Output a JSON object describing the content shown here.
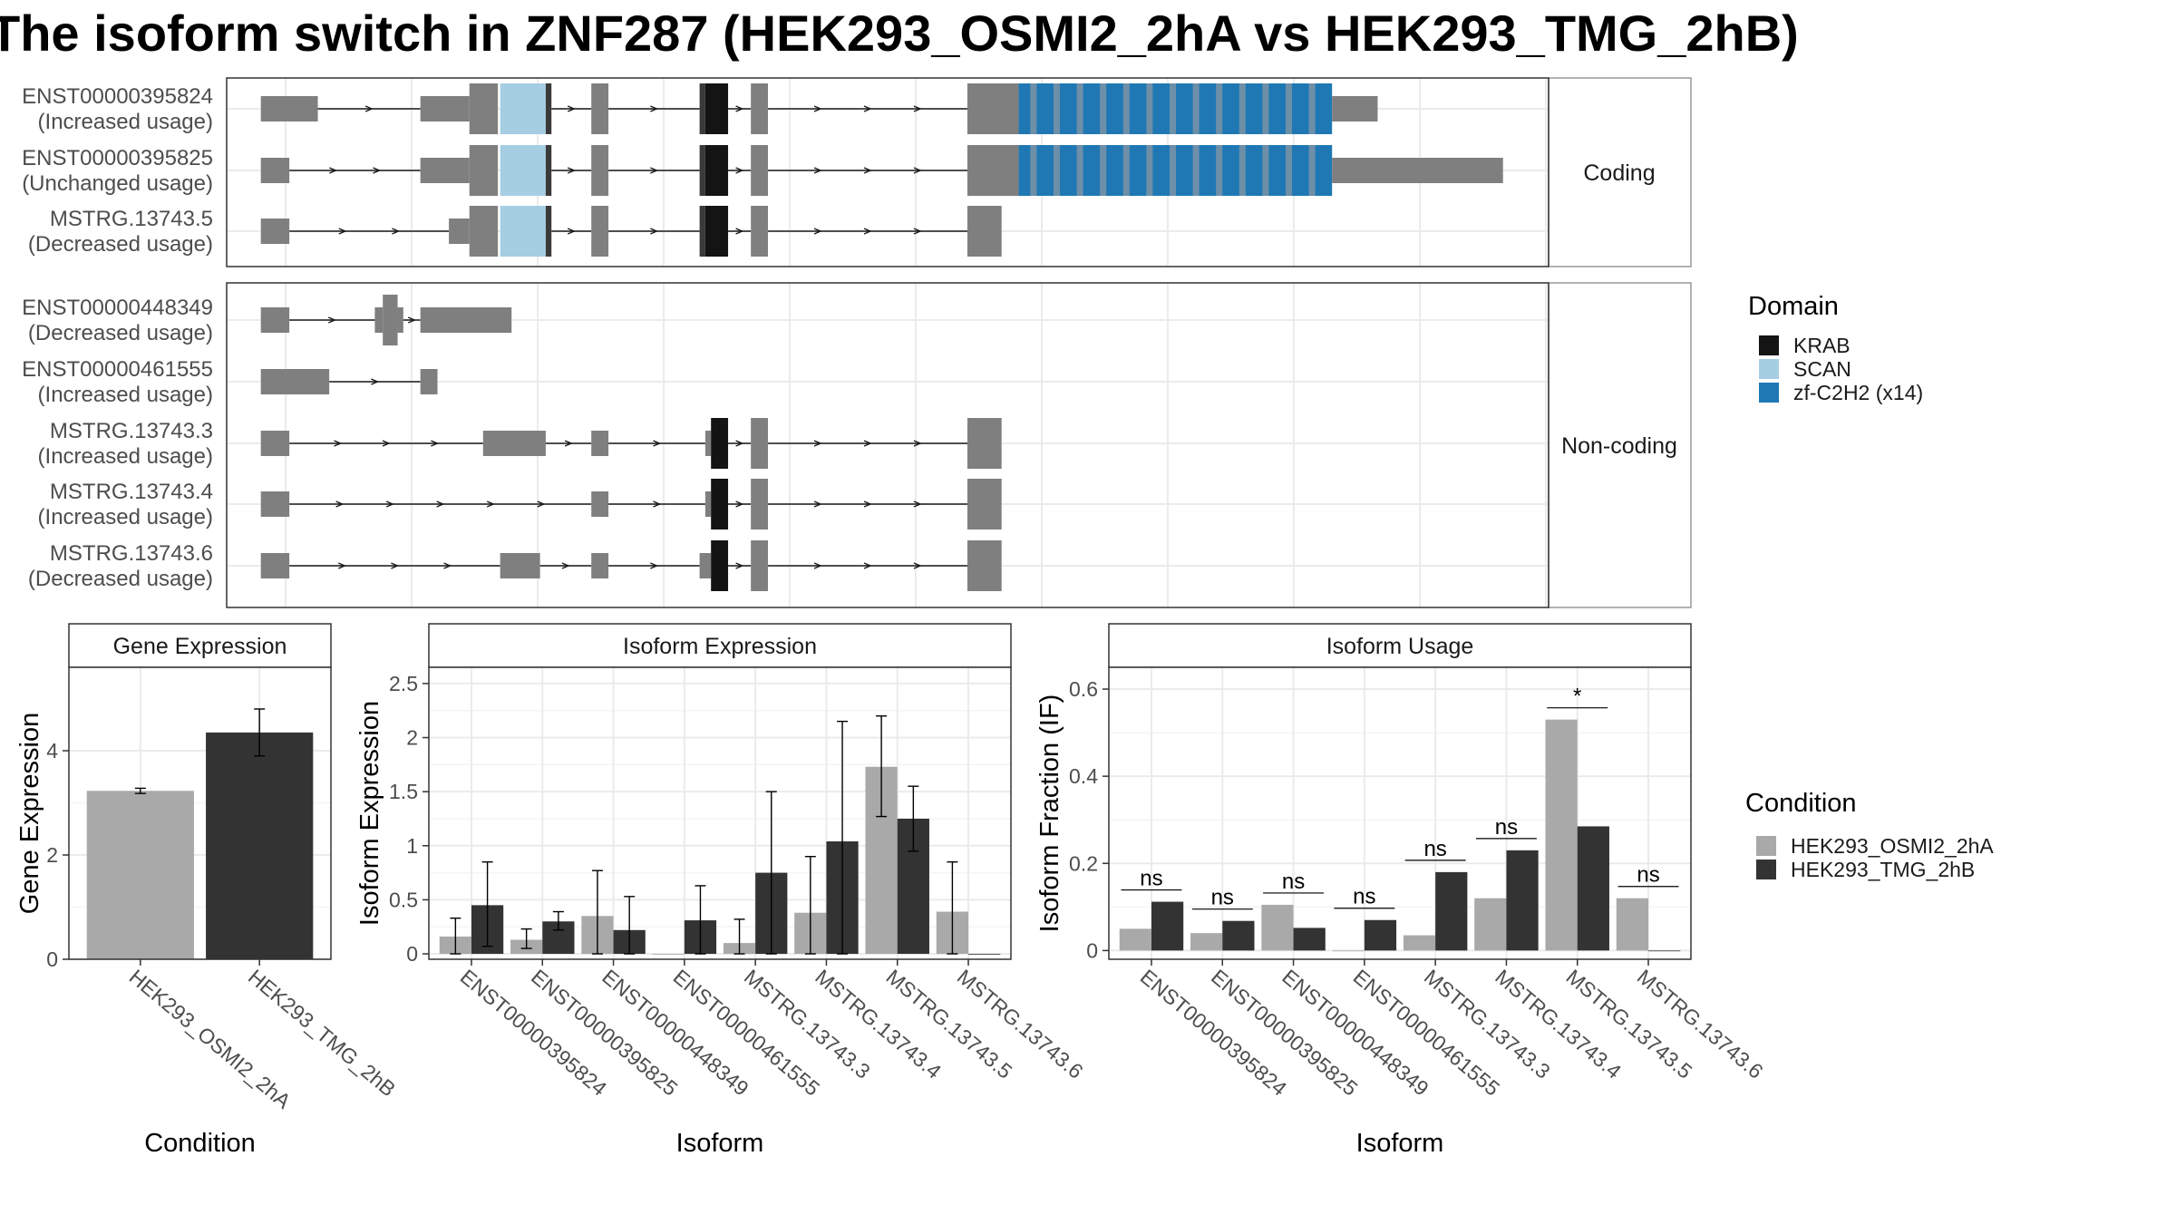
{
  "title": "The isoform switch in ZNF287 (HEK293_OSMI2_2hA vs HEK293_TMG_2hB)",
  "colors": {
    "exon": "#7f7f7f",
    "KRAB": "#141414",
    "SCAN": "#a6cee3",
    "zf": "#1f78b4",
    "cond1": "#a9a9a9",
    "cond2": "#333333",
    "grid": "#ebebeb",
    "panel_border": "#333333",
    "strip_border": "#999999",
    "intron": "#1a1a1a"
  },
  "structure": {
    "facets": [
      {
        "label": "Coding",
        "transcripts": [
          {
            "name": "ENST00000395824",
            "usage": "(Increased usage)",
            "exons": [
              [
                0.0,
                5.0
              ],
              [
                14.0,
                18.3
              ],
              [
                18.3,
                20.8
              ],
              [
                21.0,
                25.0
              ],
              [
                25.0,
                25.5
              ],
              [
                29.0,
                30.5
              ],
              [
                38.5,
                39.0
              ],
              [
                39.0,
                41.0
              ],
              [
                43.0,
                44.5
              ],
              [
                62.0,
                66.5
              ],
              [
                66.5,
                94.0
              ],
              [
                94.0,
                98.0
              ]
            ],
            "features": [
              [
                "exon",
                0
              ],
              [
                "exon",
                1
              ],
              [
                "exon",
                2
              ],
              [
                "SCAN",
                3
              ],
              [
                "dark",
                4
              ],
              [
                "exon",
                5
              ],
              [
                "dark",
                6
              ],
              [
                "KRAB",
                7
              ],
              [
                "exon",
                8
              ],
              [
                "exon",
                9
              ],
              [
                "zf",
                10
              ],
              [
                "exon",
                11
              ]
            ],
            "cds": [
              2,
              3,
              4,
              5,
              6,
              7,
              8,
              9,
              10
            ],
            "zf_bands": 14
          },
          {
            "name": "ENST00000395825",
            "usage": "(Unchanged usage)",
            "exons": [
              [
                0.0,
                2.5
              ],
              [
                14.0,
                18.3
              ],
              [
                18.3,
                20.8
              ],
              [
                21.0,
                25.0
              ],
              [
                25.0,
                25.5
              ],
              [
                29.0,
                30.5
              ],
              [
                38.5,
                39.0
              ],
              [
                39.0,
                41.0
              ],
              [
                43.0,
                44.5
              ],
              [
                62.0,
                66.5
              ],
              [
                66.5,
                94.0
              ],
              [
                94.0,
                109.0
              ]
            ],
            "features": [
              [
                "exon",
                0
              ],
              [
                "exon",
                1
              ],
              [
                "exon",
                2
              ],
              [
                "SCAN",
                3
              ],
              [
                "dark",
                4
              ],
              [
                "exon",
                5
              ],
              [
                "dark",
                6
              ],
              [
                "KRAB",
                7
              ],
              [
                "exon",
                8
              ],
              [
                "exon",
                9
              ],
              [
                "zf",
                10
              ],
              [
                "exon",
                11
              ]
            ],
            "cds": [
              2,
              3,
              4,
              5,
              6,
              7,
              8,
              9,
              10
            ],
            "zf_bands": 14
          },
          {
            "name": "MSTRG.13743.5",
            "usage": "(Decreased usage)",
            "exons": [
              [
                0.0,
                2.5
              ],
              [
                16.5,
                18.3
              ],
              [
                18.3,
                20.8
              ],
              [
                21.0,
                25.0
              ],
              [
                25.0,
                25.5
              ],
              [
                29.0,
                30.5
              ],
              [
                38.5,
                39.0
              ],
              [
                39.0,
                41.0
              ],
              [
                43.0,
                44.5
              ],
              [
                62.0,
                65.0
              ]
            ],
            "features": [
              [
                "exon",
                0
              ],
              [
                "exon",
                1
              ],
              [
                "exon",
                2
              ],
              [
                "SCAN",
                3
              ],
              [
                "dark",
                4
              ],
              [
                "exon",
                5
              ],
              [
                "dark",
                6
              ],
              [
                "KRAB",
                7
              ],
              [
                "exon",
                8
              ],
              [
                "exon",
                9
              ]
            ],
            "cds": [
              2,
              3,
              4,
              5,
              6,
              7,
              8,
              9
            ],
            "zf_bands": 0
          }
        ]
      },
      {
        "label": "Non-coding",
        "transcripts": [
          {
            "name": "ENST00000448349",
            "usage": "(Decreased usage)",
            "exons": [
              [
                0.0,
                2.5
              ],
              [
                10.0,
                10.7
              ],
              [
                10.7,
                12.0
              ],
              [
                12.0,
                12.5
              ],
              [
                14.0,
                22.0
              ]
            ],
            "features": [
              [
                "exon",
                0
              ],
              [
                "exon",
                1
              ],
              [
                "exon",
                2
              ],
              [
                "exon",
                3
              ],
              [
                "exon",
                4
              ]
            ],
            "cds": [
              2
            ],
            "peak": [
              10.7,
              12.0
            ],
            "zf_bands": 0
          },
          {
            "name": "ENST00000461555",
            "usage": "(Increased usage)",
            "exons": [
              [
                0.0,
                6.0
              ],
              [
                14.0,
                15.5
              ]
            ],
            "features": [
              [
                "exon",
                0
              ],
              [
                "exon",
                1
              ]
            ],
            "cds": [],
            "zf_bands": 0
          },
          {
            "name": "MSTRG.13743.3",
            "usage": "(Increased usage)",
            "exons": [
              [
                0.0,
                2.5
              ],
              [
                19.5,
                25.0
              ],
              [
                29.0,
                30.5
              ],
              [
                39.0,
                39.5
              ],
              [
                39.5,
                41.0
              ],
              [
                43.0,
                44.5
              ],
              [
                62.0,
                65.0
              ]
            ],
            "features": [
              [
                "exon",
                0
              ],
              [
                "exon",
                1
              ],
              [
                "exon",
                2
              ],
              [
                "exon",
                3
              ],
              [
                "KRAB",
                4
              ],
              [
                "exon",
                5
              ],
              [
                "exon",
                6
              ]
            ],
            "cds": [
              4,
              5,
              6
            ],
            "zf_bands": 0
          },
          {
            "name": "MSTRG.13743.4",
            "usage": "(Increased usage)",
            "exons": [
              [
                0.0,
                2.5
              ],
              [
                29.0,
                30.5
              ],
              [
                39.0,
                39.5
              ],
              [
                39.5,
                41.0
              ],
              [
                43.0,
                44.5
              ],
              [
                62.0,
                65.0
              ]
            ],
            "features": [
              [
                "exon",
                0
              ],
              [
                "exon",
                1
              ],
              [
                "exon",
                2
              ],
              [
                "KRAB",
                3
              ],
              [
                "exon",
                4
              ],
              [
                "exon",
                5
              ]
            ],
            "cds": [
              3,
              4,
              5
            ],
            "zf_bands": 0
          },
          {
            "name": "MSTRG.13743.6",
            "usage": "(Decreased usage)",
            "exons": [
              [
                0.0,
                2.5
              ],
              [
                21.0,
                24.5
              ],
              [
                29.0,
                30.5
              ],
              [
                38.5,
                39.5
              ],
              [
                39.5,
                41.0
              ],
              [
                43.0,
                44.5
              ],
              [
                62.0,
                65.0
              ]
            ],
            "features": [
              [
                "exon",
                0
              ],
              [
                "exon",
                1
              ],
              [
                "exon",
                2
              ],
              [
                "exon",
                3
              ],
              [
                "KRAB",
                4
              ],
              [
                "exon",
                5
              ],
              [
                "exon",
                6
              ]
            ],
            "cds": [
              4,
              5,
              6
            ],
            "zf_bands": 0
          }
        ]
      }
    ],
    "x_range": [
      -3,
      113
    ],
    "legend_title": "Domain",
    "legend": [
      {
        "label": "KRAB",
        "color": "#141414"
      },
      {
        "label": "SCAN",
        "color": "#a6cee3"
      },
      {
        "label": "zf-C2H2 (x14)",
        "color": "#1f78b4"
      }
    ]
  },
  "chart_data": [
    {
      "type": "bar",
      "title": "Gene Expression",
      "xlabel": "Condition",
      "ylabel": "Gene Expression",
      "ylim": [
        0,
        5.6
      ],
      "yticks": [
        0,
        2,
        4
      ],
      "categories": [
        "HEK293_OSMI2_2hA",
        "HEK293_TMG_2hB"
      ],
      "series": [
        {
          "name": "HEK293_OSMI2_2hA",
          "values": [
            3.23,
            null
          ],
          "err": [
            [
              3.18,
              3.28
            ],
            null
          ]
        },
        {
          "name": "HEK293_TMG_2hB",
          "values": [
            null,
            4.35
          ],
          "err": [
            null,
            [
              3.9,
              4.8
            ]
          ]
        }
      ]
    },
    {
      "type": "bar",
      "title": "Isoform Expression",
      "xlabel": "Isoform",
      "ylabel": "Isoform Expression",
      "ylim": [
        -0.05,
        2.65
      ],
      "yticks": [
        0.0,
        0.5,
        1.0,
        1.5,
        2.0,
        2.5
      ],
      "categories": [
        "ENST00000395824",
        "ENST00000395825",
        "ENST00000448349",
        "ENST00000461555",
        "MSTRG.13743.3",
        "MSTRG.13743.4",
        "MSTRG.13743.5",
        "MSTRG.13743.6"
      ],
      "series": [
        {
          "name": "HEK293_OSMI2_2hA",
          "values": [
            0.16,
            0.13,
            0.35,
            0.0,
            0.1,
            0.38,
            1.73,
            0.39
          ],
          "err": [
            [
              0.0,
              0.33
            ],
            [
              0.05,
              0.23
            ],
            [
              0.0,
              0.77
            ],
            null,
            [
              0.0,
              0.32
            ],
            [
              0.0,
              0.9
            ],
            [
              1.27,
              2.2
            ],
            [
              0.0,
              0.85
            ]
          ]
        },
        {
          "name": "HEK293_TMG_2hB",
          "values": [
            0.45,
            0.3,
            0.22,
            0.31,
            0.75,
            1.04,
            1.25,
            0.0
          ],
          "err": [
            [
              0.07,
              0.85
            ],
            [
              0.22,
              0.39
            ],
            [
              0.0,
              0.53
            ],
            [
              0.0,
              0.63
            ],
            [
              0.0,
              1.5
            ],
            [
              0.0,
              2.15
            ],
            [
              0.95,
              1.55
            ],
            null
          ]
        }
      ]
    },
    {
      "type": "bar",
      "title": "Isoform Usage",
      "xlabel": "Isoform",
      "ylabel": "Isoform Fraction (IF)",
      "ylim": [
        -0.02,
        0.65
      ],
      "yticks": [
        0.0,
        0.2,
        0.4,
        0.6
      ],
      "categories": [
        "ENST00000395824",
        "ENST00000395825",
        "ENST00000448349",
        "ENST00000461555",
        "MSTRG.13743.3",
        "MSTRG.13743.4",
        "MSTRG.13743.5",
        "MSTRG.13743.6"
      ],
      "series": [
        {
          "name": "HEK293_OSMI2_2hA",
          "values": [
            0.05,
            0.04,
            0.105,
            0.0,
            0.035,
            0.12,
            0.53,
            0.12
          ]
        },
        {
          "name": "HEK293_TMG_2hB",
          "values": [
            0.112,
            0.068,
            0.052,
            0.07,
            0.18,
            0.23,
            0.285,
            0.0
          ]
        }
      ],
      "significance": [
        "ns",
        "ns",
        "ns",
        "ns",
        "ns",
        "ns",
        "*",
        "ns"
      ]
    }
  ],
  "condition_legend": {
    "title": "Condition",
    "items": [
      {
        "label": "HEK293_OSMI2_2hA",
        "color": "#a9a9a9"
      },
      {
        "label": "HEK293_TMG_2hB",
        "color": "#333333"
      }
    ]
  }
}
